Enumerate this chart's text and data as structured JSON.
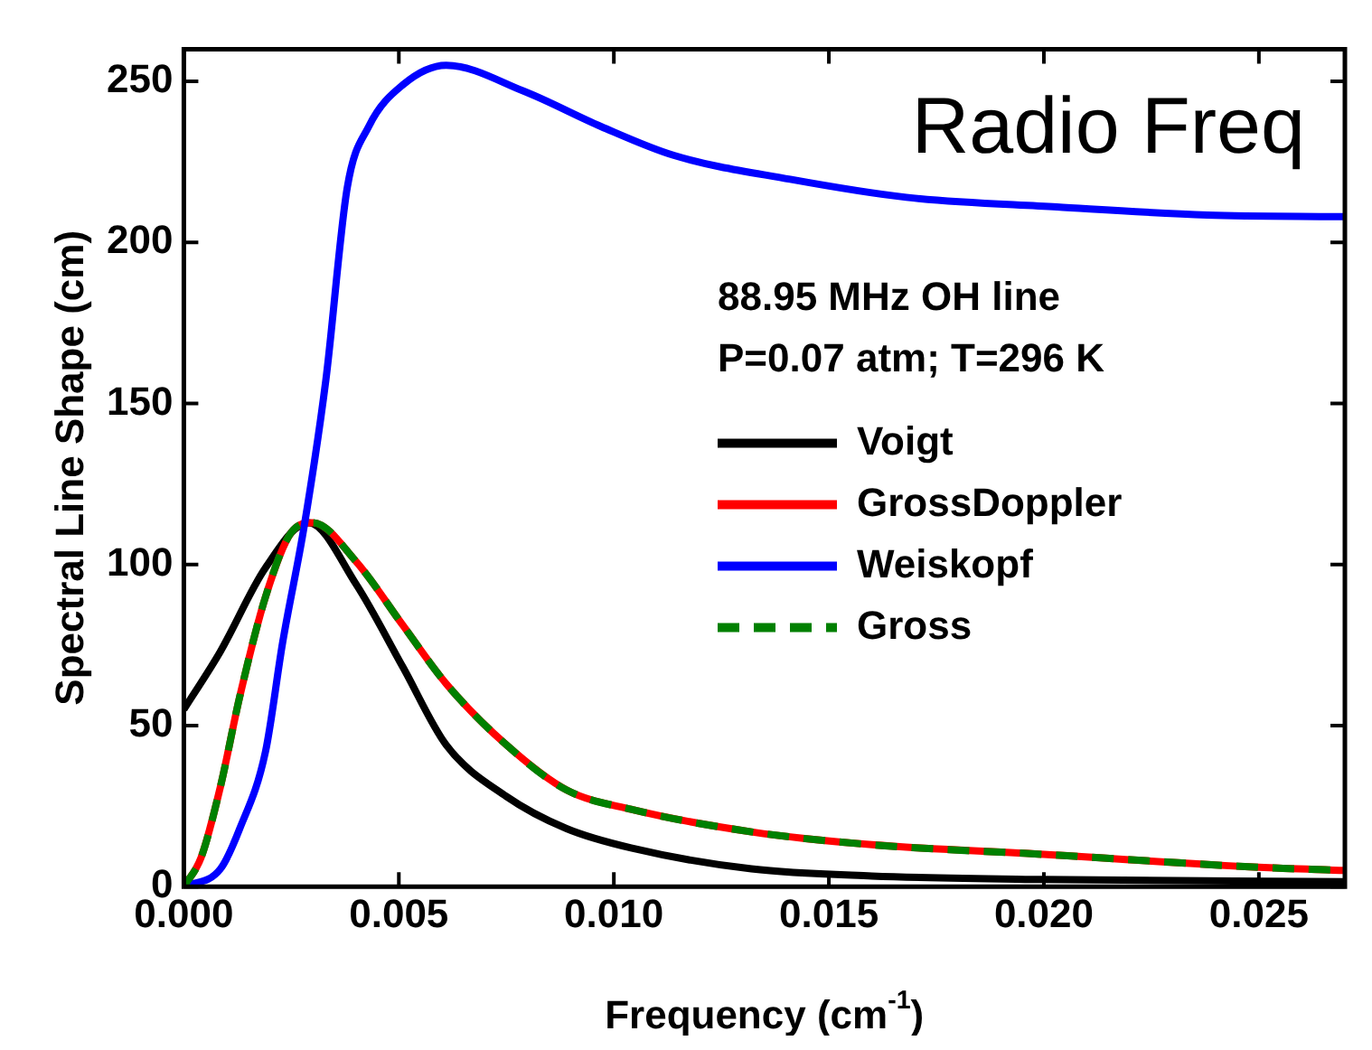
{
  "chart_data": {
    "type": "line",
    "xlabel": "Frequency (cm$^{-1}$)",
    "ylabel": "Spectral Line Shape (cm)",
    "annotations": [
      "Radio Freq",
      "88.95 MHz OH line",
      "P=0.07 atm; T=296 K"
    ],
    "xlim": [
      0,
      0.027
    ],
    "xticks": [
      {
        "value": 0,
        "label": "0.000"
      },
      {
        "value": 0.005,
        "label": "0.005"
      },
      {
        "value": 0.01,
        "label": "0.010"
      },
      {
        "value": 0.015,
        "label": "0.015"
      },
      {
        "value": 0.02,
        "label": "0.020"
      },
      {
        "value": 0.025,
        "label": "0.025"
      }
    ],
    "ylim": [
      0,
      260
    ],
    "yticks": [
      0,
      50,
      100,
      150,
      200,
      250
    ],
    "grid": false,
    "legend": "right",
    "marker": "none",
    "series": [
      {
        "name": "Voigt",
        "color": "#000000",
        "line_style": "solid",
        "x": [
          0,
          0.00085,
          0.0019,
          0.0029,
          0.004,
          0.0051,
          0.0061,
          0.0075,
          0.0089,
          0.0104,
          0.0132,
          0.016,
          0.02,
          0.027
        ],
        "values": [
          55,
          73,
          99,
          113,
          94,
          68,
          44,
          28,
          18,
          12,
          5.5,
          3.3,
          2.2,
          1.5
        ]
      },
      {
        "name": "GrossDoppler",
        "color": "#ff0000",
        "line_style": "solid",
        "x": [
          0,
          0.0004,
          0.00085,
          0.0013,
          0.0019,
          0.0025,
          0.003,
          0.004,
          0.0051,
          0.0061,
          0.0075,
          0.0089,
          0.0104,
          0.0132,
          0.016,
          0.02,
          0.025,
          0.027
        ],
        "values": [
          0,
          9,
          31,
          59,
          90,
          110,
          113,
          101,
          81,
          63,
          44,
          30,
          24,
          17,
          13,
          10,
          6,
          5
        ]
      },
      {
        "name": "Weiskopf",
        "color": "#0000ff",
        "line_style": "solid",
        "x": [
          0,
          0.00085,
          0.0013,
          0.0019,
          0.0023,
          0.0028,
          0.0033,
          0.0038,
          0.0043,
          0.0051,
          0.0061,
          0.0079,
          0.0097,
          0.0114,
          0.0141,
          0.0168,
          0.0203,
          0.0238,
          0.027
        ],
        "values": [
          0,
          5.5,
          18,
          42,
          76,
          112,
          157,
          217,
          236,
          249,
          255,
          247,
          236,
          227,
          219.6,
          214,
          211,
          208.5,
          208
        ]
      },
      {
        "name": "Gross",
        "color": "#008000",
        "line_style": "dashed",
        "x": [
          0,
          0.0004,
          0.00085,
          0.0013,
          0.0019,
          0.0025,
          0.003,
          0.004,
          0.0051,
          0.0061,
          0.0075,
          0.0089,
          0.0104,
          0.0132,
          0.016,
          0.02,
          0.025,
          0.027
        ],
        "values": [
          0,
          9,
          31,
          59,
          90,
          110,
          113,
          101,
          81,
          63,
          44,
          30,
          24,
          17,
          13,
          10,
          6,
          5
        ]
      }
    ]
  }
}
